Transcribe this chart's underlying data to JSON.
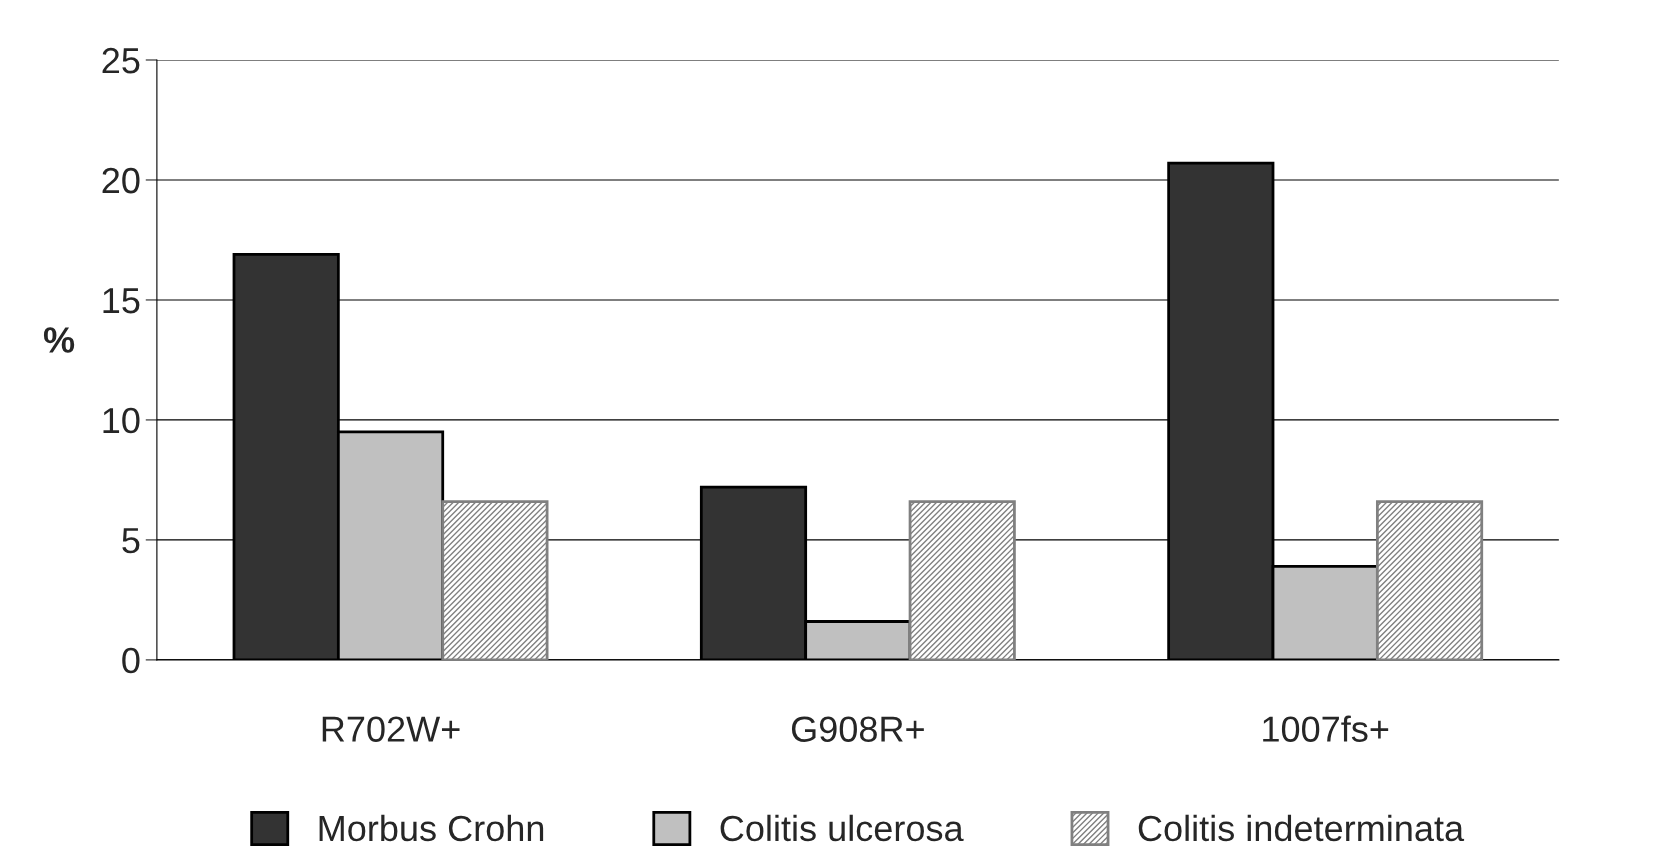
{
  "chart_data": {
    "type": "bar",
    "ylabel": "%",
    "categories": [
      "R702W+",
      "G908R+",
      "1007fs+"
    ],
    "series": [
      {
        "name": "Morbus Crohn",
        "color": "#333333",
        "values": [
          16.9,
          7.2,
          20.7
        ]
      },
      {
        "name": "Colitis ulcerosa",
        "color": "#c0c0c0",
        "values": [
          9.5,
          1.6,
          3.9
        ]
      },
      {
        "name": "Colitis indeterminata",
        "color": "#808080",
        "values": [
          6.6,
          6.6,
          6.6
        ]
      }
    ],
    "ylim": [
      0,
      25
    ],
    "yticks": [
      0,
      5,
      10,
      15,
      20,
      25
    ],
    "grid": "y",
    "legend": "bottom"
  }
}
